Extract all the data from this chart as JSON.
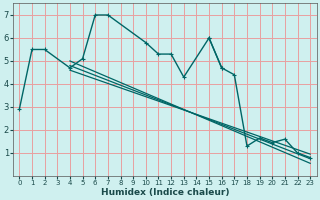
{
  "xlabel": "Humidex (Indice chaleur)",
  "xlim": [
    -0.5,
    23.5
  ],
  "ylim": [
    0,
    7.5
  ],
  "bg_color": "#cff0ef",
  "grid_color": "#e8a0a0",
  "line_color": "#006666",
  "series_jagged1": {
    "x": [
      0,
      1,
      2,
      4,
      5,
      6,
      7,
      10,
      11,
      12,
      13,
      15,
      16
    ],
    "y": [
      2.9,
      5.5,
      5.5,
      4.7,
      5.1,
      7.0,
      7.0,
      5.8,
      5.3,
      5.3,
      4.3,
      6.0,
      4.7
    ]
  },
  "series_jagged2": {
    "x": [
      15,
      16,
      17,
      18,
      19,
      20,
      21,
      22,
      23
    ],
    "y": [
      6.0,
      4.7,
      4.4,
      1.3,
      1.65,
      1.45,
      1.6,
      1.0,
      0.8
    ]
  },
  "diag_lines": [
    {
      "x": [
        4,
        23
      ],
      "y": [
        5.0,
        0.55
      ]
    },
    {
      "x": [
        4,
        23
      ],
      "y": [
        4.8,
        0.75
      ]
    },
    {
      "x": [
        4,
        23
      ],
      "y": [
        4.6,
        0.95
      ]
    }
  ],
  "yticks": [
    1,
    2,
    3,
    4,
    5,
    6,
    7
  ],
  "xticks": [
    0,
    1,
    2,
    3,
    4,
    5,
    6,
    7,
    8,
    9,
    10,
    11,
    12,
    13,
    14,
    15,
    16,
    17,
    18,
    19,
    20,
    21,
    22,
    23
  ]
}
